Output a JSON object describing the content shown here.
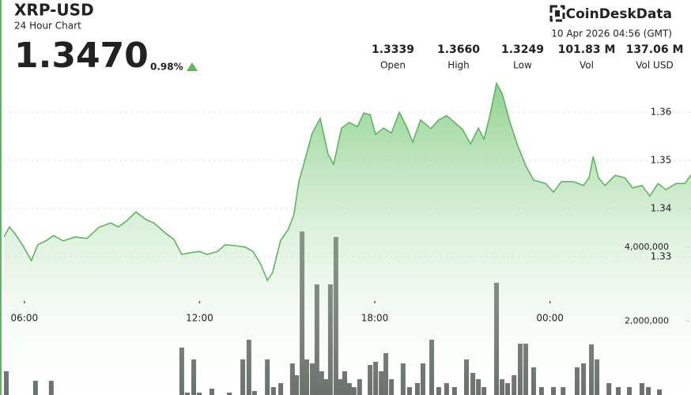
{
  "chart_data": {
    "type": "area",
    "title": "XRP-USD",
    "subtitle": "24 Hour Chart",
    "last_price": "1.3470",
    "change": "0.98%",
    "brand": "CoinDeskData",
    "timestamp": "10 Apr 2026 04:56 (GMT)",
    "stats": [
      {
        "value": "1.3339",
        "label": "Open"
      },
      {
        "value": "1.3660",
        "label": "High"
      },
      {
        "value": "1.3249",
        "label": "Low"
      },
      {
        "value": "101.83 M",
        "label": "Vol"
      },
      {
        "value": "137.06 M",
        "label": "Vol USD"
      }
    ],
    "xlim": [
      5.3,
      28.83
    ],
    "xticks": [
      {
        "value": 6,
        "label": "06:00"
      },
      {
        "value": 12,
        "label": "12:00"
      },
      {
        "value": 18,
        "label": "18:00"
      },
      {
        "value": 24,
        "label": "00:00"
      }
    ],
    "ylim": [
      1.3013,
      1.3669
    ],
    "yticks": [
      1.33,
      1.34,
      1.35,
      1.36
    ],
    "y2lim": [
      0,
      8556000
    ],
    "y2ticks": [
      {
        "value": 2000000,
        "label": "2,000,000"
      },
      {
        "value": 4000000,
        "label": "4,000,000"
      }
    ],
    "grid": true,
    "series": [
      {
        "type": "bar",
        "axis": "y2",
        "color": "#5b615d",
        "x": [
          5.38,
          6.38,
          6.92,
          11.39,
          11.58,
          11.8,
          11.99,
          12.42,
          13.02,
          13.48,
          13.69,
          13.88,
          14.32,
          14.53,
          14.78,
          15.18,
          15.32,
          15.51,
          15.67,
          15.86,
          16.02,
          16.18,
          16.32,
          16.48,
          16.67,
          16.81,
          16.97,
          17.13,
          17.29,
          17.48,
          17.84,
          18.03,
          18.22,
          18.38,
          18.57,
          18.97,
          19.19,
          19.46,
          19.65,
          19.95,
          20.19,
          20.46,
          20.73,
          21.14,
          21.36,
          21.55,
          21.74,
          22.17,
          22.36,
          22.55,
          22.77,
          22.98,
          23.17,
          23.44,
          23.71,
          24.12,
          24.45,
          24.93,
          25.15,
          25.42,
          25.61,
          26.02,
          26.34,
          26.72,
          27.15,
          27.37,
          27.75
        ],
        "values": [
          642000,
          385000,
          385000,
          1283000,
          64000,
          963000,
          64000,
          171000,
          64000,
          963000,
          1497000,
          107000,
          963000,
          214000,
          321000,
          856000,
          535000,
          4428000,
          963000,
          856000,
          2995000,
          642000,
          428000,
          2995000,
          4278000,
          428000,
          642000,
          321000,
          214000,
          428000,
          813000,
          898000,
          642000,
          1134000,
          428000,
          856000,
          214000,
          321000,
          856000,
          1497000,
          214000,
          321000,
          214000,
          963000,
          599000,
          428000,
          214000,
          3037000,
          428000,
          321000,
          535000,
          1390000,
          1390000,
          749000,
          214000,
          214000,
          214000,
          749000,
          856000,
          1369000,
          963000,
          321000,
          214000,
          214000,
          321000,
          214000,
          150000
        ]
      },
      {
        "type": "area",
        "color": "#5cb85c",
        "x": [
          5.3,
          5.49,
          5.7,
          5.97,
          6.24,
          6.46,
          6.73,
          7.0,
          7.33,
          7.73,
          8.14,
          8.55,
          8.95,
          9.22,
          9.49,
          9.82,
          10.17,
          10.44,
          10.85,
          11.12,
          11.39,
          11.66,
          11.99,
          12.26,
          12.61,
          12.88,
          13.23,
          13.56,
          13.83,
          14.1,
          14.32,
          14.5,
          14.77,
          15.04,
          15.23,
          15.4,
          15.59,
          15.86,
          16.13,
          16.4,
          16.59,
          16.86,
          17.13,
          17.4,
          17.62,
          17.84,
          18.03,
          18.3,
          18.57,
          18.84,
          19.11,
          19.3,
          19.57,
          19.92,
          20.19,
          20.46,
          20.73,
          21.01,
          21.28,
          21.55,
          21.74,
          21.95,
          22.17,
          22.36,
          22.63,
          22.9,
          23.17,
          23.44,
          23.85,
          24.12,
          24.39,
          24.8,
          25.15,
          25.34,
          25.48,
          25.66,
          25.88,
          26.23,
          26.56,
          26.83,
          27.15,
          27.42,
          27.7,
          27.97,
          28.32,
          28.62,
          28.83
        ],
        "values": [
          1.3341,
          1.3362,
          1.3346,
          1.3321,
          1.3292,
          1.3325,
          1.3333,
          1.3344,
          1.3333,
          1.3341,
          1.3338,
          1.3361,
          1.337,
          1.3362,
          1.3374,
          1.3393,
          1.3377,
          1.337,
          1.3348,
          1.3336,
          1.3305,
          1.3308,
          1.3311,
          1.3305,
          1.3311,
          1.3325,
          1.3323,
          1.332,
          1.3311,
          1.3284,
          1.3251,
          1.3267,
          1.3333,
          1.3357,
          1.3387,
          1.3456,
          1.3497,
          1.3557,
          1.3587,
          1.3513,
          1.3492,
          1.3567,
          1.3579,
          1.357,
          1.3598,
          1.3595,
          1.3554,
          1.3567,
          1.3557,
          1.36,
          1.3567,
          1.3538,
          1.3584,
          1.3566,
          1.3584,
          1.3593,
          1.3579,
          1.3564,
          1.3534,
          1.3567,
          1.3544,
          1.3595,
          1.366,
          1.3639,
          1.3579,
          1.353,
          1.3489,
          1.3459,
          1.3452,
          1.3434,
          1.3456,
          1.3456,
          1.3448,
          1.3464,
          1.3508,
          1.3464,
          1.3448,
          1.3469,
          1.3464,
          1.3443,
          1.3448,
          1.3426,
          1.3452,
          1.3439,
          1.3452,
          1.3452,
          1.347
        ]
      }
    ]
  }
}
